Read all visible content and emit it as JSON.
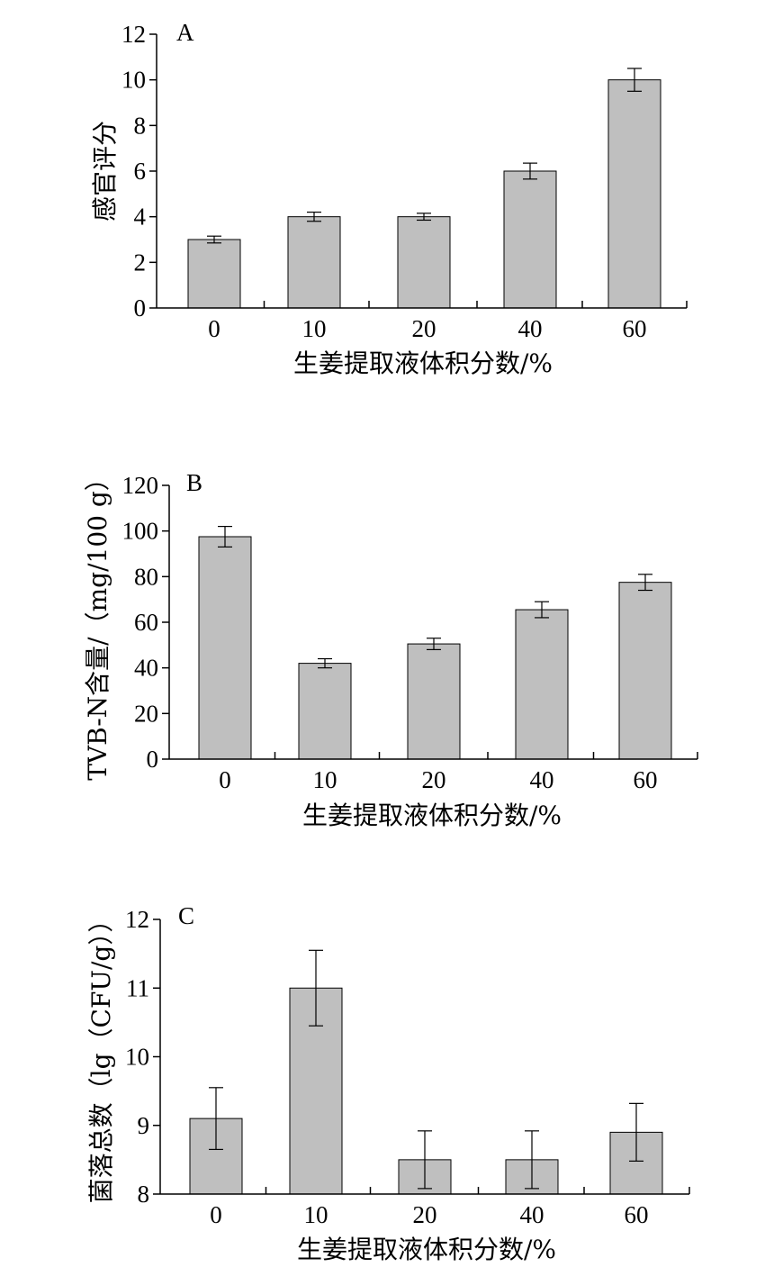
{
  "chart_data": [
    {
      "type": "bar",
      "panel_label": "A",
      "categories": [
        "0",
        "10",
        "20",
        "40",
        "60"
      ],
      "values": [
        3.0,
        4.0,
        4.0,
        6.0,
        10.0
      ],
      "errors": [
        0.15,
        0.2,
        0.15,
        0.35,
        0.5
      ],
      "xlabel": "生姜提取液体积分数/%",
      "ylabel": "感官评分",
      "ylim": [
        0,
        12
      ],
      "yticks": [
        "0",
        "2",
        "4",
        "6",
        "8",
        "10",
        "12"
      ],
      "bar_color": "#bfbfbf",
      "grid": false
    },
    {
      "type": "bar",
      "panel_label": "B",
      "categories": [
        "0",
        "10",
        "20",
        "40",
        "60"
      ],
      "values": [
        97.5,
        42.0,
        50.5,
        65.5,
        77.5
      ],
      "errors": [
        4.5,
        2.0,
        2.5,
        3.5,
        3.5
      ],
      "xlabel": "生姜提取液体积分数/%",
      "ylabel": "TVB-N含量/（mg/100 g）",
      "ylim": [
        0,
        120
      ],
      "yticks": [
        "0",
        "20",
        "40",
        "60",
        "80",
        "100",
        "120"
      ],
      "bar_color": "#bfbfbf",
      "grid": false
    },
    {
      "type": "bar",
      "panel_label": "C",
      "categories": [
        "0",
        "10",
        "20",
        "40",
        "60"
      ],
      "values": [
        9.1,
        11.0,
        8.5,
        8.5,
        8.9
      ],
      "errors": [
        0.45,
        0.55,
        0.42,
        0.42,
        0.42
      ],
      "xlabel": "生姜提取液体积分数/%",
      "ylabel": "菌落总数（lg（CFU/g））",
      "ylim": [
        8,
        12
      ],
      "yticks": [
        "8",
        "9",
        "10",
        "11",
        "12"
      ],
      "bar_color": "#bfbfbf",
      "grid": false
    }
  ]
}
